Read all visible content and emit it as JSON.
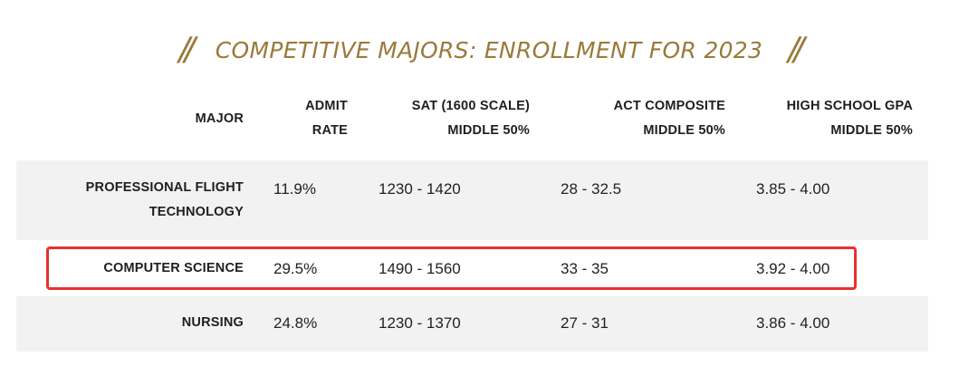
{
  "title": {
    "left_mark": "//",
    "text": "COMPETITIVE MAJORS: ENROLLMENT FOR 2023",
    "right_mark": "//"
  },
  "headers": {
    "major": "MAJOR",
    "admit_line1": "ADMIT",
    "admit_line2": "RATE",
    "sat_line1": "SAT (1600 SCALE)",
    "sat_line2": "MIDDLE 50%",
    "act_line1": "ACT COMPOSITE",
    "act_line2": "MIDDLE 50%",
    "gpa_line1": "HIGH SCHOOL GPA",
    "gpa_line2": "MIDDLE 50%"
  },
  "rows": [
    {
      "major_line1": "PROFESSIONAL FLIGHT",
      "major_line2": "TECHNOLOGY",
      "admit": "11.9%",
      "sat": "1230 - 1420",
      "act": "28 - 32.5",
      "gpa": "3.85 - 4.00"
    },
    {
      "major_line1": "COMPUTER SCIENCE",
      "admit": "29.5%",
      "sat": "1490 - 1560",
      "act": "33 - 35",
      "gpa": "3.92 - 4.00"
    },
    {
      "major_line1": "NURSING",
      "admit": "24.8%",
      "sat": "1230 - 1370",
      "act": "27 - 31",
      "gpa": "3.86 - 4.00"
    }
  ],
  "colors": {
    "title": "#9a7a3a",
    "row_shade": "#f2f2f2",
    "highlight": "#e8322b"
  }
}
